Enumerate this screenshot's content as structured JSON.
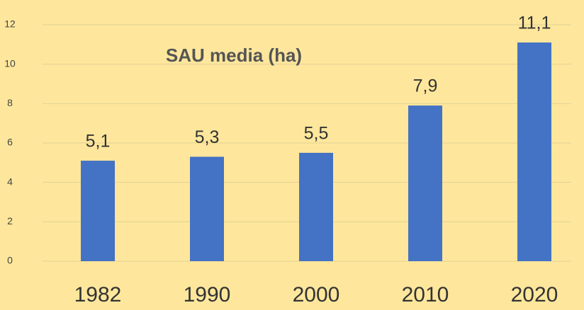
{
  "chart_data": {
    "type": "bar",
    "title": "SAU media (ha)",
    "categories": [
      "1982",
      "1990",
      "2000",
      "2010",
      "2020"
    ],
    "values": [
      5.1,
      5.3,
      5.5,
      7.9,
      11.1
    ],
    "value_labels": [
      "5,1",
      "5,3",
      "5,5",
      "7,9",
      "11,1"
    ],
    "color": "#4472c4",
    "ylim": [
      0,
      12
    ],
    "yticks": [
      0,
      2,
      4,
      6,
      8,
      10,
      12
    ],
    "grid": true
  }
}
